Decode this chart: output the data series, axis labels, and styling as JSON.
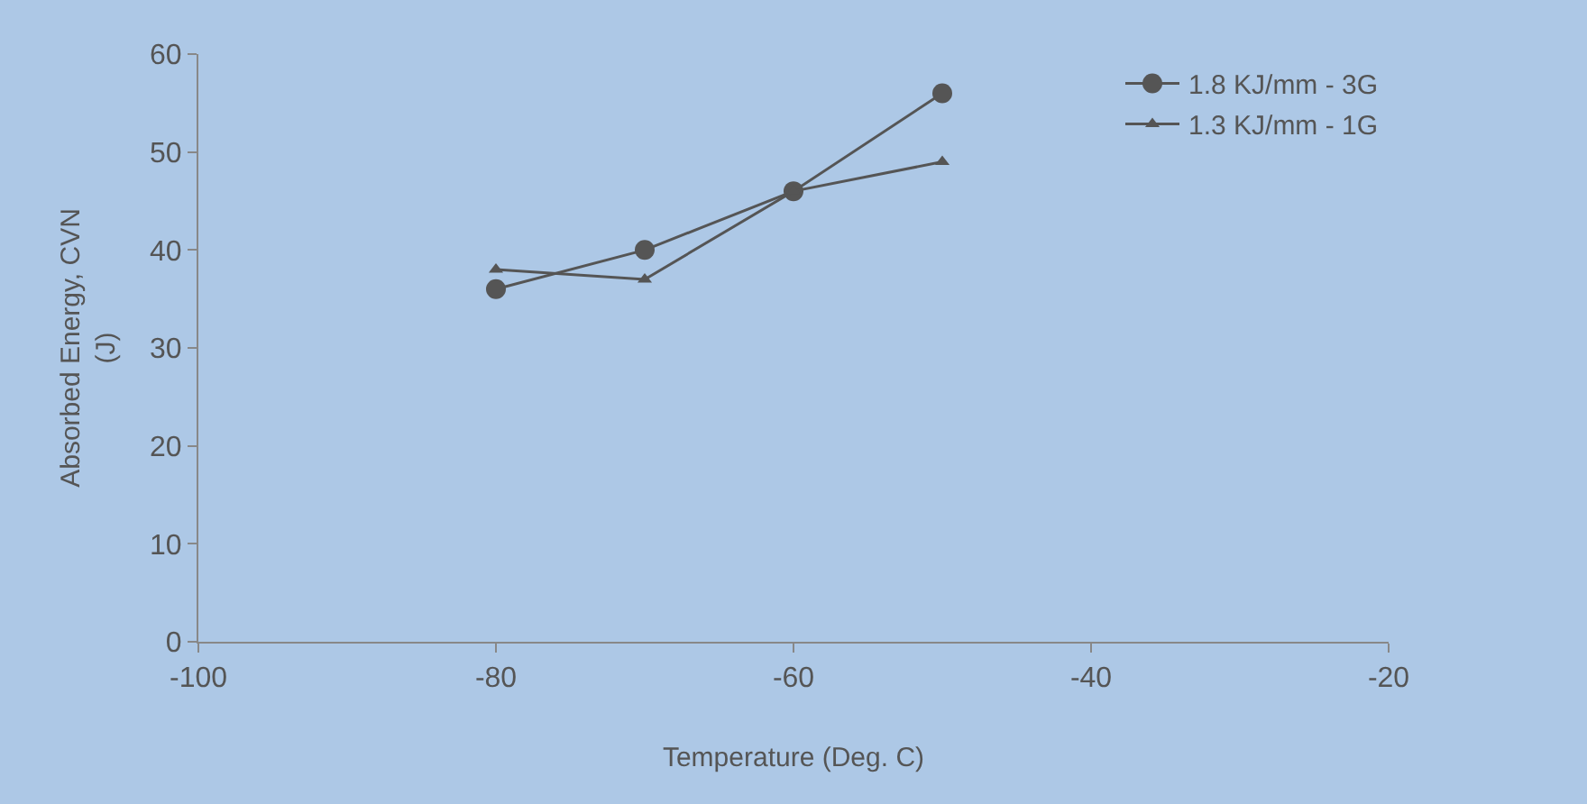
{
  "chart_data": {
    "type": "line",
    "xlabel": "Temperature (Deg. C)",
    "ylabel": "Absorbed Energy, CVN\n(J)",
    "x": [
      -80,
      -70,
      -60,
      -50
    ],
    "series": [
      {
        "name": "1.8 KJ/mm - 3G",
        "color": "#555555",
        "marker": "circle",
        "values": [
          36,
          40,
          46,
          56
        ]
      },
      {
        "name": "1.3 KJ/mm - 1G",
        "color": "#555555",
        "marker": "triangle",
        "values": [
          38,
          37,
          46,
          49
        ]
      }
    ],
    "xlim": [
      -100,
      -20
    ],
    "xticks": [
      -100,
      -80,
      -60,
      -40,
      -20
    ],
    "ylim": [
      0,
      60
    ],
    "yticks": [
      0,
      10,
      20,
      30,
      40,
      50,
      60
    ],
    "grid": false,
    "legend": "top right",
    "line_style": "solid"
  }
}
